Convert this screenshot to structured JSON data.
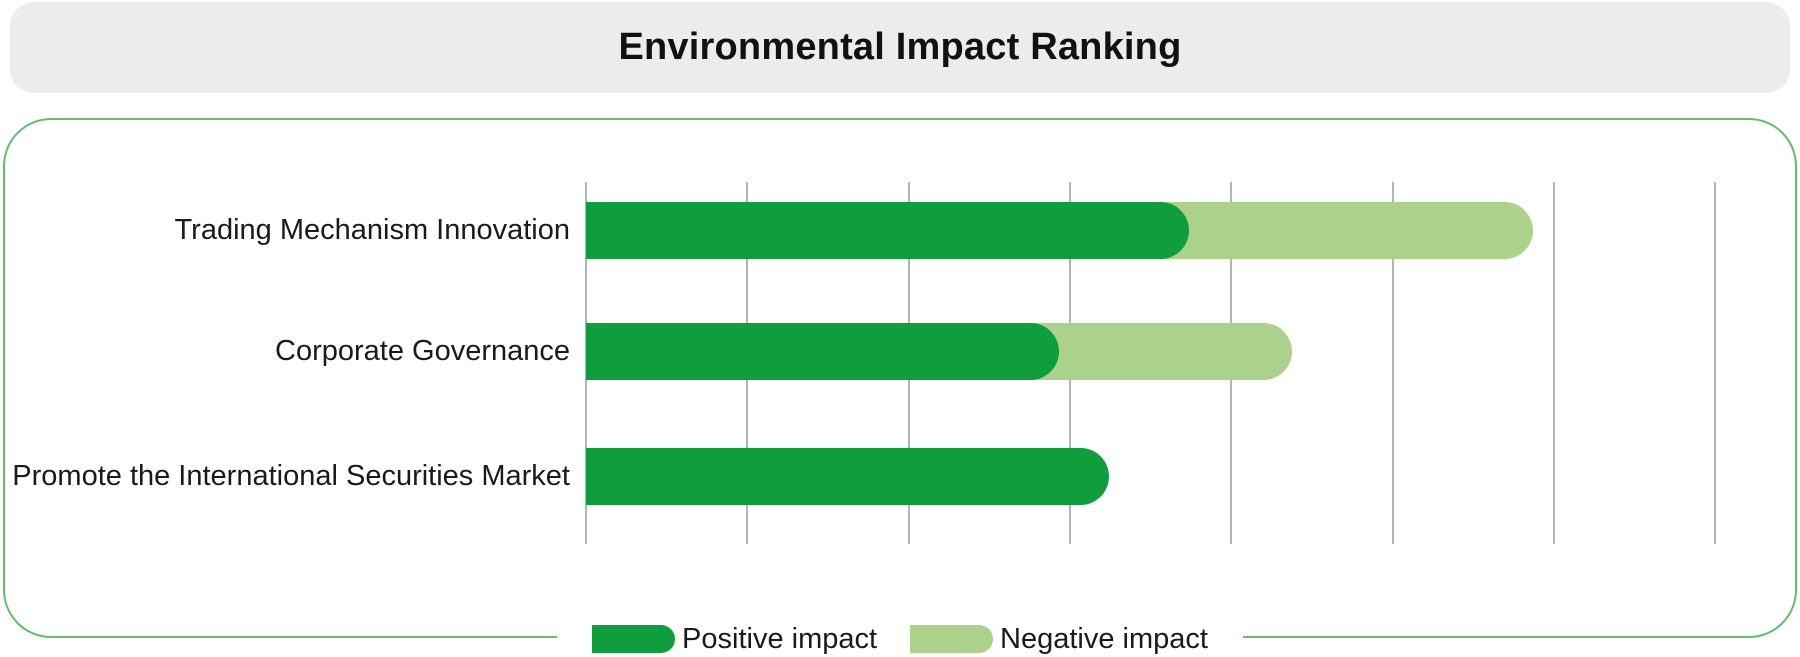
{
  "header": {
    "title": "Environmental Impact Ranking"
  },
  "chart_data": {
    "type": "bar",
    "orientation": "horizontal",
    "stacked": true,
    "title": "Environmental Impact Ranking",
    "xlabel": "",
    "ylabel": "",
    "categories": [
      "Trading Mechanism Innovation",
      "Corporate Governance",
      "Promote the International Securities Market"
    ],
    "series": [
      {
        "name": "Positive impact",
        "color": "#0f9d3e",
        "values": [
          3.74,
          2.93,
          3.24
        ]
      },
      {
        "name": "Negative impact",
        "color": "#abd18b",
        "values": [
          2.13,
          1.45,
          0
        ]
      }
    ],
    "value_units": "gridline divisions (no numeric tick labels shown)",
    "xlim": [
      0,
      7.35
    ],
    "grid": {
      "show": true,
      "vertical_line_count": 8,
      "interval": 1
    },
    "axis_tick_labels": "none",
    "legend_position": "bottom-center"
  },
  "legend": {
    "positive_label": "Positive impact",
    "negative_label": "Negative impact"
  },
  "colors": {
    "positive": "#0f9d3e",
    "negative": "#abd18b",
    "panel_border": "#65bb73",
    "gridline": "#b4b4b4",
    "header_background": "#ececeb",
    "text": "#1a1a1a"
  }
}
